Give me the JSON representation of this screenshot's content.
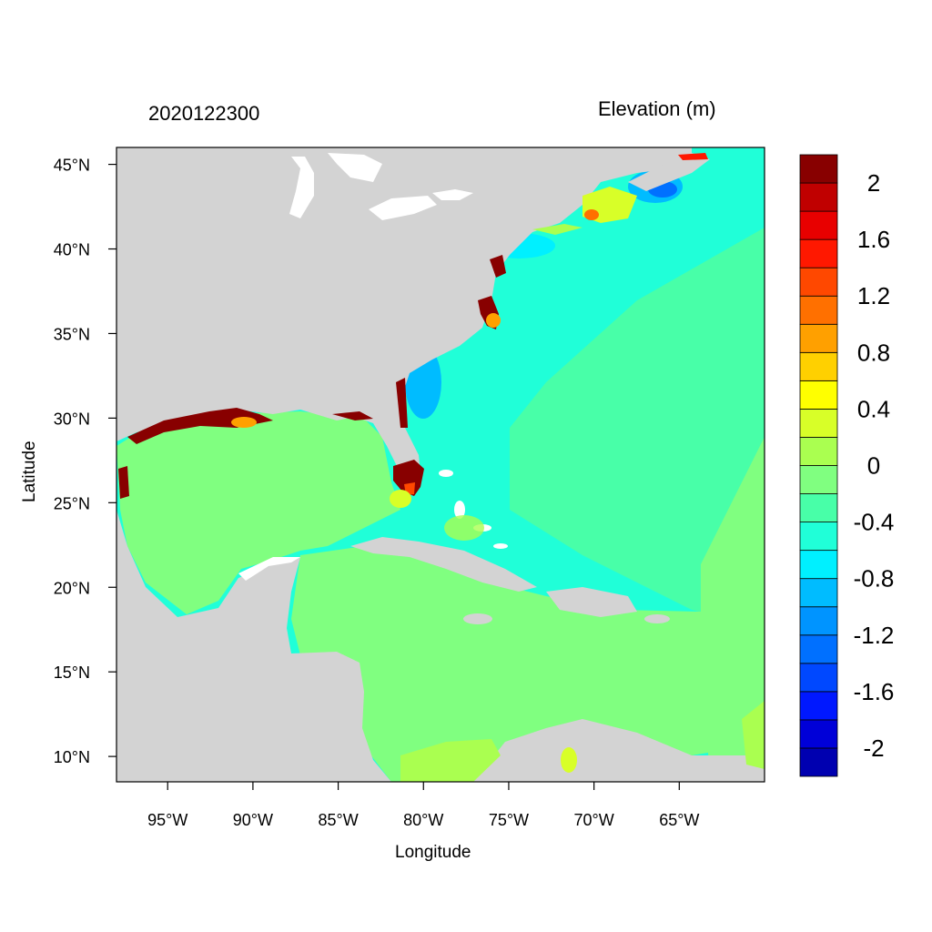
{
  "title_left": "2020122300",
  "title_right": "Elevation (m)",
  "xlabel": "Longitude",
  "ylabel": "Latitude",
  "map": {
    "lon_range": [
      -98,
      -60
    ],
    "lat_range": [
      8.5,
      46
    ],
    "x_ticks": [
      {
        "lon": -95,
        "label": "95°W"
      },
      {
        "lon": -90,
        "label": "90°W"
      },
      {
        "lon": -85,
        "label": "85°W"
      },
      {
        "lon": -80,
        "label": "80°W"
      },
      {
        "lon": -75,
        "label": "75°W"
      },
      {
        "lon": -70,
        "label": "70°W"
      },
      {
        "lon": -65,
        "label": "65°W"
      }
    ],
    "y_ticks": [
      {
        "lat": 45,
        "label": "45°N"
      },
      {
        "lat": 40,
        "label": "40°N"
      },
      {
        "lat": 35,
        "label": "35°N"
      },
      {
        "lat": 30,
        "label": "30°N"
      },
      {
        "lat": 25,
        "label": "25°N"
      },
      {
        "lat": 20,
        "label": "20°N"
      },
      {
        "lat": 15,
        "label": "15°N"
      },
      {
        "lat": 10,
        "label": "10°N"
      }
    ]
  },
  "colorbar": {
    "colors": [
      "#0000b0",
      "#0000d8",
      "#0018ff",
      "#0048ff",
      "#0070ff",
      "#0094ff",
      "#00bcff",
      "#00f0ff",
      "#20ffd8",
      "#48ffa8",
      "#80ff80",
      "#aaff50",
      "#d8ff28",
      "#ffff00",
      "#ffd000",
      "#ffa000",
      "#ff7000",
      "#ff4800",
      "#ff1800",
      "#e80000",
      "#c00000",
      "#880000"
    ],
    "labels": [
      {
        "value": 2,
        "text": "2"
      },
      {
        "value": 1.6,
        "text": "1.6"
      },
      {
        "value": 1.2,
        "text": "1.2"
      },
      {
        "value": 0.8,
        "text": "0.8"
      },
      {
        "value": 0.4,
        "text": "0.4"
      },
      {
        "value": 0,
        "text": "0"
      },
      {
        "value": -0.4,
        "text": "-0.4"
      },
      {
        "value": -0.8,
        "text": "-0.8"
      },
      {
        "value": -1.2,
        "text": "-1.2"
      },
      {
        "value": -1.6,
        "text": "-1.6"
      },
      {
        "value": -2,
        "text": "-2"
      }
    ],
    "range": [
      -2.2,
      2.2
    ]
  },
  "colors": {
    "land": "#d3d3d3",
    "gulf_caribbean": "#80ff80",
    "atlantic": "#20ffd8",
    "atlantic_mid": "#48ffa8",
    "lakes": "#ffffff",
    "surge_high": "#880000"
  }
}
